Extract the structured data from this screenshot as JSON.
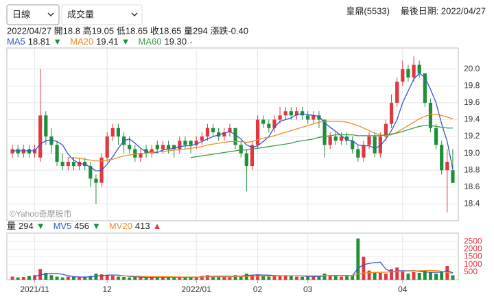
{
  "header": {
    "interval": "日線",
    "indicator": "成交量",
    "stock": "皇鼎(5533)",
    "last_date": "最後日期: 2022/04/27",
    "quote": "2022/04/27 開18.8 高19.05 低18.65 收18.65 量294 漲跌-0.40",
    "watermark": "©Yahoo奇摩股市"
  },
  "chart_data": [
    {
      "type": "candlestick",
      "up_color": "#e0383e",
      "down_color": "#1f8f3a",
      "ohlc": [
        [
          19.0,
          19.1,
          18.95,
          19.05
        ],
        [
          19.05,
          19.1,
          18.95,
          19.0
        ],
        [
          19.0,
          19.1,
          18.95,
          19.05
        ],
        [
          19.05,
          19.1,
          18.95,
          19.0
        ],
        [
          19.0,
          19.1,
          18.95,
          19.05
        ],
        [
          18.95,
          20.0,
          18.9,
          19.45
        ],
        [
          19.45,
          19.5,
          19.1,
          19.2
        ],
        [
          19.2,
          19.3,
          19.0,
          19.1
        ],
        [
          19.1,
          19.15,
          18.85,
          18.9
        ],
        [
          18.9,
          19.0,
          18.8,
          18.85
        ],
        [
          18.85,
          18.95,
          18.8,
          18.9
        ],
        [
          18.9,
          18.95,
          18.8,
          18.85
        ],
        [
          18.85,
          18.95,
          18.8,
          18.9
        ],
        [
          18.9,
          18.95,
          18.8,
          18.85
        ],
        [
          18.85,
          18.9,
          18.6,
          18.7
        ],
        [
          18.7,
          18.75,
          18.4,
          18.65
        ],
        [
          18.65,
          19.0,
          18.6,
          18.95
        ],
        [
          18.95,
          19.25,
          18.9,
          19.2
        ],
        [
          19.2,
          19.35,
          19.15,
          19.3
        ],
        [
          19.3,
          19.35,
          19.1,
          19.2
        ],
        [
          19.2,
          19.25,
          19.0,
          19.1
        ],
        [
          19.1,
          19.2,
          19.0,
          19.05
        ],
        [
          19.05,
          19.1,
          18.9,
          18.95
        ],
        [
          18.95,
          19.05,
          18.9,
          19.0
        ],
        [
          19.05,
          19.1,
          18.95,
          19.0
        ],
        [
          19.0,
          19.1,
          18.95,
          19.05
        ],
        [
          19.1,
          19.15,
          19.0,
          19.05
        ],
        [
          19.05,
          19.15,
          19.0,
          19.1
        ],
        [
          19.1,
          19.15,
          19.0,
          19.05
        ],
        [
          19.1,
          19.1,
          18.95,
          19.05
        ],
        [
          19.05,
          19.2,
          19.0,
          19.15
        ],
        [
          19.15,
          19.2,
          19.05,
          19.1
        ],
        [
          19.15,
          19.15,
          19.0,
          19.1
        ],
        [
          19.1,
          19.2,
          19.05,
          19.15
        ],
        [
          19.15,
          19.25,
          19.1,
          19.2
        ],
        [
          19.2,
          19.35,
          19.15,
          19.3
        ],
        [
          19.3,
          19.35,
          19.2,
          19.25
        ],
        [
          19.25,
          19.3,
          19.15,
          19.2
        ],
        [
          19.2,
          19.3,
          19.15,
          19.25
        ],
        [
          19.25,
          19.35,
          19.2,
          19.3
        ],
        [
          19.3,
          19.3,
          19.05,
          19.1
        ],
        [
          19.1,
          19.15,
          18.95,
          19.0
        ],
        [
          19.0,
          19.05,
          18.55,
          18.85
        ],
        [
          18.85,
          19.15,
          18.8,
          19.1
        ],
        [
          19.1,
          19.45,
          19.05,
          19.4
        ],
        [
          19.4,
          19.45,
          19.3,
          19.35
        ],
        [
          19.35,
          19.4,
          19.25,
          19.3
        ],
        [
          19.3,
          19.45,
          19.25,
          19.4
        ],
        [
          19.4,
          19.55,
          19.35,
          19.45
        ],
        [
          19.45,
          19.55,
          19.4,
          19.5
        ],
        [
          19.5,
          19.55,
          19.4,
          19.45
        ],
        [
          19.45,
          19.55,
          19.4,
          19.5
        ],
        [
          19.5,
          19.55,
          19.4,
          19.45
        ],
        [
          19.45,
          19.5,
          19.35,
          19.4
        ],
        [
          19.4,
          19.5,
          19.35,
          19.45
        ],
        [
          19.45,
          19.5,
          19.3,
          19.4
        ],
        [
          19.4,
          19.4,
          18.95,
          19.1
        ],
        [
          19.1,
          19.25,
          19.05,
          19.2
        ],
        [
          19.2,
          19.25,
          19.1,
          19.15
        ],
        [
          19.15,
          19.25,
          19.1,
          19.2
        ],
        [
          19.2,
          19.25,
          19.1,
          19.15
        ],
        [
          19.15,
          19.2,
          19.0,
          19.05
        ],
        [
          19.05,
          19.1,
          18.9,
          18.95
        ],
        [
          18.95,
          19.15,
          18.9,
          19.1
        ],
        [
          19.1,
          19.25,
          19.05,
          19.2
        ],
        [
          19.2,
          19.25,
          18.95,
          19.0
        ],
        [
          19.0,
          19.25,
          18.95,
          19.2
        ],
        [
          19.2,
          19.4,
          19.15,
          19.35
        ],
        [
          19.35,
          19.7,
          19.3,
          19.6
        ],
        [
          19.6,
          19.9,
          19.55,
          19.85
        ],
        [
          19.85,
          20.1,
          19.8,
          20.0
        ],
        [
          20.0,
          20.05,
          19.85,
          19.9
        ],
        [
          19.9,
          20.15,
          19.85,
          20.05
        ],
        [
          20.05,
          20.1,
          19.9,
          19.95
        ],
        [
          19.95,
          19.95,
          19.55,
          19.6
        ],
        [
          19.6,
          19.65,
          19.25,
          19.3
        ],
        [
          19.3,
          19.35,
          19.05,
          19.1
        ],
        [
          19.1,
          19.15,
          18.75,
          18.8
        ],
        [
          18.8,
          19.05,
          18.3,
          18.9
        ],
        [
          18.8,
          19.05,
          18.65,
          18.65
        ]
      ],
      "series": [
        {
          "name": "MA5",
          "color": "#3056c4",
          "legend_value": "18.81",
          "legend_marker": "▼",
          "values": [
            19.03,
            19.03,
            19.03,
            19.03,
            19.03,
            19.11,
            19.15,
            19.16,
            19.14,
            19.1,
            18.99,
            18.92,
            18.88,
            18.87,
            18.84,
            18.79,
            18.8,
            18.87,
            18.96,
            19.06,
            19.15,
            19.17,
            19.12,
            19.06,
            19.02,
            19.01,
            19.01,
            19.04,
            19.05,
            19.06,
            19.08,
            19.09,
            19.09,
            19.11,
            19.14,
            19.17,
            19.2,
            19.22,
            19.24,
            19.26,
            19.22,
            19.17,
            19.1,
            19.07,
            19.09,
            19.14,
            19.2,
            19.31,
            19.38,
            19.4,
            19.42,
            19.46,
            19.47,
            19.46,
            19.45,
            19.44,
            19.36,
            19.31,
            19.26,
            19.21,
            19.16,
            19.15,
            19.1,
            19.09,
            19.09,
            19.06,
            19.09,
            19.17,
            19.27,
            19.4,
            19.6,
            19.74,
            19.88,
            19.95,
            19.9,
            19.76,
            19.6,
            19.35,
            19.14,
            18.81
          ]
        },
        {
          "name": "MA20",
          "color": "#f08a24",
          "legend_value": "19.41",
          "legend_marker": "▼",
          "values": [
            null,
            null,
            null,
            null,
            null,
            null,
            null,
            null,
            null,
            null,
            18.95,
            18.95,
            18.94,
            18.93,
            18.92,
            18.91,
            18.91,
            18.92,
            18.93,
            18.95,
            18.97,
            18.98,
            18.99,
            19.0,
            19.0,
            19.01,
            19.02,
            19.02,
            19.03,
            19.04,
            19.04,
            19.05,
            19.06,
            19.07,
            19.08,
            19.1,
            19.11,
            19.12,
            19.13,
            19.14,
            19.14,
            19.14,
            19.13,
            19.14,
            19.16,
            19.18,
            19.19,
            19.21,
            19.23,
            19.25,
            19.27,
            19.29,
            19.31,
            19.33,
            19.35,
            19.37,
            19.38,
            19.38,
            19.38,
            19.38,
            19.37,
            19.35,
            19.33,
            19.3,
            19.27,
            19.24,
            19.22,
            19.21,
            19.22,
            19.25,
            19.29,
            19.33,
            19.37,
            19.41,
            19.44,
            19.46,
            19.46,
            19.45,
            19.43,
            19.41
          ]
        },
        {
          "name": "MA60",
          "color": "#3d9a4a",
          "legend_value": "19.30",
          "legend_marker": "-",
          "values": [
            null,
            null,
            null,
            null,
            null,
            null,
            null,
            null,
            null,
            null,
            null,
            null,
            null,
            null,
            null,
            null,
            null,
            null,
            null,
            null,
            null,
            null,
            null,
            null,
            null,
            null,
            null,
            null,
            null,
            null,
            null,
            null,
            18.95,
            18.96,
            18.97,
            18.98,
            18.99,
            19.0,
            19.01,
            19.02,
            19.03,
            19.04,
            19.04,
            19.05,
            19.06,
            19.07,
            19.08,
            19.09,
            19.1,
            19.11,
            19.12,
            19.14,
            19.15,
            19.16,
            19.17,
            19.19,
            19.2,
            19.21,
            19.22,
            19.22,
            19.22,
            19.22,
            19.21,
            19.21,
            19.21,
            19.21,
            19.21,
            19.22,
            19.23,
            19.24,
            19.26,
            19.28,
            19.3,
            19.32,
            19.33,
            19.33,
            19.32,
            19.31,
            19.3,
            19.3
          ]
        }
      ],
      "ylim": [
        18.2,
        20.25
      ],
      "yticks": [
        {
          "value": 20.0,
          "label": "20.0"
        },
        19.8,
        19.6,
        19.4,
        19.2,
        {
          "value": 19.0,
          "label": "19.0"
        },
        18.8,
        18.6,
        18.4
      ],
      "grid": true
    },
    {
      "type": "bar",
      "name": "量",
      "legend_value": "294",
      "legend_marker": "▼",
      "values": [
        200,
        150,
        180,
        250,
        300,
        700,
        450,
        300,
        200,
        150,
        200,
        180,
        150,
        200,
        250,
        400,
        350,
        300,
        250,
        200,
        180,
        150,
        200,
        150,
        120,
        150,
        180,
        200,
        150,
        130,
        180,
        150,
        160,
        200,
        250,
        300,
        200,
        180,
        220,
        250,
        300,
        250,
        400,
        300,
        350,
        250,
        200,
        300,
        250,
        300,
        250,
        200,
        180,
        200,
        220,
        250,
        400,
        300,
        250,
        200,
        250,
        300,
        2700,
        1500,
        600,
        500,
        450,
        400,
        700,
        800,
        600,
        400,
        500,
        450,
        600,
        500,
        400,
        550,
        900,
        294
      ],
      "series": [
        {
          "name": "MV5",
          "color": "#3056c4",
          "legend_value": "456",
          "legend_marker": "▼",
          "values": [
            null,
            null,
            null,
            null,
            216,
            316,
            376,
            400,
            410,
            360,
            260,
            206,
            176,
            176,
            196,
            236,
            270,
            300,
            310,
            300,
            256,
            216,
            196,
            176,
            160,
            154,
            160,
            160,
            160,
            162,
            168,
            162,
            160,
            164,
            188,
            212,
            222,
            226,
            230,
            230,
            230,
            240,
            284,
            304,
            320,
            310,
            300,
            280,
            270,
            260,
            260,
            260,
            236,
            226,
            210,
            210,
            250,
            278,
            284,
            280,
            280,
            260,
            750,
            990,
            1070,
            1120,
            1150,
            690,
            530,
            570,
            590,
            580,
            600,
            550,
            510,
            490,
            490,
            500,
            590,
            456
          ]
        },
        {
          "name": "MV20",
          "color": "#f08a24",
          "legend_value": "413",
          "legend_marker": "▲",
          "values": [
            null,
            null,
            null,
            null,
            null,
            null,
            null,
            null,
            null,
            null,
            null,
            null,
            null,
            null,
            null,
            null,
            null,
            null,
            null,
            260,
            250,
            240,
            235,
            225,
            215,
            205,
            200,
            200,
            195,
            190,
            185,
            180,
            180,
            180,
            182,
            186,
            188,
            190,
            192,
            196,
            204,
            210,
            222,
            230,
            240,
            245,
            246,
            250,
            255,
            258,
            260,
            262,
            260,
            258,
            256,
            256,
            260,
            262,
            260,
            258,
            258,
            260,
            380,
            440,
            460,
            475,
            485,
            495,
            520,
            545,
            560,
            570,
            580,
            590,
            600,
            610,
            600,
            560,
            470,
            413
          ]
        }
      ],
      "ylim": [
        0,
        3050
      ],
      "yticks": [
        500,
        1000,
        1500,
        2000,
        2500
      ],
      "xticks": [
        {
          "value": 4,
          "label": "2021/11"
        },
        {
          "value": 17,
          "label": "12"
        },
        {
          "value": 33,
          "label": "2022/01"
        },
        {
          "value": 44,
          "label": "02"
        },
        {
          "value": 53,
          "label": "03"
        },
        {
          "value": 70,
          "label": "04"
        }
      ],
      "grid": true
    }
  ]
}
